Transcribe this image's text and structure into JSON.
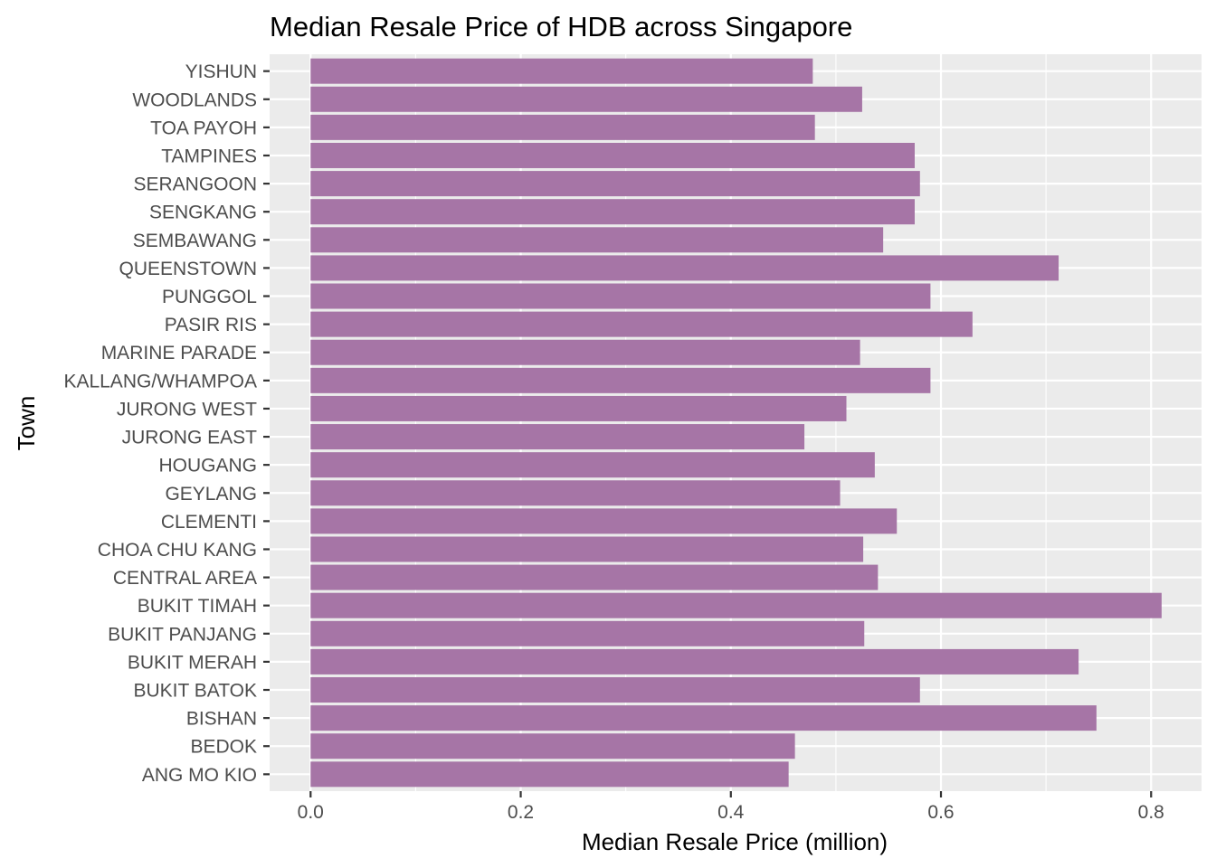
{
  "chart_data": {
    "type": "bar",
    "orientation": "horizontal",
    "title": "Median Resale Price of HDB across Singapore",
    "xlabel": "Median Resale Price (million)",
    "ylabel": "Town",
    "xlim": [
      -0.039,
      0.848
    ],
    "x_ticks": [
      0.0,
      0.2,
      0.4,
      0.6,
      0.8
    ],
    "x_tick_labels": [
      "0.0",
      "0.2",
      "0.4",
      "0.6",
      "0.8"
    ],
    "grid": true,
    "legend": "none",
    "bar_color": "#a675a6",
    "panel_color": "#ebebeb",
    "categories": [
      "ANG MO KIO",
      "BEDOK",
      "BISHAN",
      "BUKIT BATOK",
      "BUKIT MERAH",
      "BUKIT PANJANG",
      "BUKIT TIMAH",
      "CENTRAL AREA",
      "CHOA CHU KANG",
      "CLEMENTI",
      "GEYLANG",
      "HOUGANG",
      "JURONG EAST",
      "JURONG WEST",
      "KALLANG/WHAMPOA",
      "MARINE PARADE",
      "PASIR RIS",
      "PUNGGOL",
      "QUEENSTOWN",
      "SEMBAWANG",
      "SENGKANG",
      "SERANGOON",
      "TAMPINES",
      "TOA PAYOH",
      "WOODLANDS",
      "YISHUN"
    ],
    "values": [
      0.455,
      0.461,
      0.748,
      0.58,
      0.731,
      0.527,
      0.81,
      0.54,
      0.526,
      0.558,
      0.504,
      0.537,
      0.47,
      0.51,
      0.59,
      0.523,
      0.63,
      0.59,
      0.712,
      0.545,
      0.575,
      0.58,
      0.575,
      0.48,
      0.525,
      0.478
    ]
  }
}
